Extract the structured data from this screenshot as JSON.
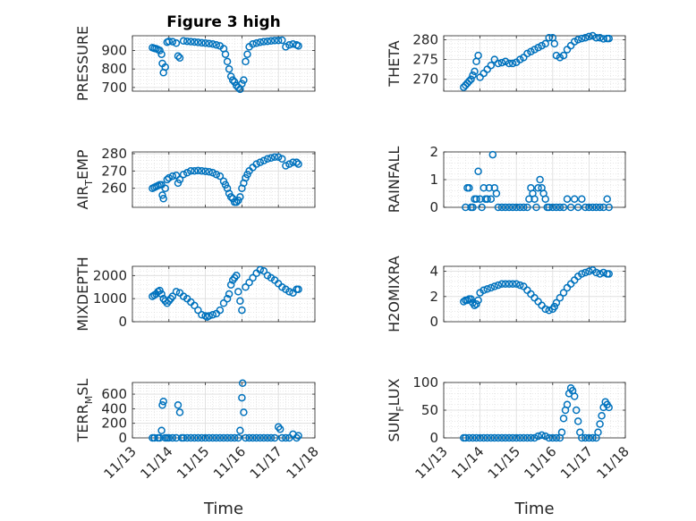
{
  "figure": {
    "title": "Figure 3 high",
    "marker_color": "#0072BD",
    "x_label": "Time",
    "x_ticks": [
      "11/13",
      "11/14",
      "11/15",
      "11/16",
      "11/17",
      "11/18"
    ]
  },
  "chart_data": [
    {
      "type": "scatter",
      "ylabel": "PRESSURE",
      "ylim": [
        680,
        980
      ],
      "yticks": [
        700,
        800,
        900
      ],
      "grid": true,
      "x": [
        13.55,
        13.6,
        13.65,
        13.7,
        13.75,
        13.8,
        13.82,
        13.85,
        13.9,
        13.95,
        14.0,
        14.1,
        14.2,
        14.25,
        14.3,
        14.4,
        14.5,
        14.6,
        14.7,
        14.8,
        14.9,
        15.0,
        15.1,
        15.2,
        15.3,
        15.4,
        15.5,
        15.55,
        15.6,
        15.65,
        15.7,
        15.75,
        15.8,
        15.85,
        15.9,
        15.95,
        16.0,
        16.05,
        16.1,
        16.15,
        16.2,
        16.3,
        16.4,
        16.5,
        16.6,
        16.7,
        16.8,
        16.9,
        17.0,
        17.1,
        17.2,
        17.3,
        17.4,
        17.5,
        17.55
      ],
      "y": [
        915,
        912,
        910,
        905,
        900,
        880,
        830,
        780,
        810,
        945,
        950,
        948,
        940,
        870,
        860,
        952,
        950,
        948,
        946,
        944,
        942,
        940,
        938,
        935,
        930,
        925,
        910,
        880,
        840,
        800,
        760,
        740,
        730,
        710,
        700,
        690,
        720,
        740,
        840,
        880,
        920,
        935,
        940,
        945,
        948,
        950,
        952,
        954,
        955,
        956,
        920,
        930,
        935,
        930,
        925
      ]
    },
    {
      "type": "scatter",
      "ylabel": "THETA",
      "ylim": [
        267,
        281
      ],
      "yticks": [
        270,
        275,
        280
      ],
      "grid": true,
      "x": [
        13.55,
        13.6,
        13.65,
        13.7,
        13.75,
        13.8,
        13.85,
        13.9,
        13.95,
        14.0,
        14.1,
        14.2,
        14.3,
        14.4,
        14.5,
        14.6,
        14.7,
        14.8,
        14.9,
        15.0,
        15.1,
        15.2,
        15.3,
        15.4,
        15.5,
        15.6,
        15.7,
        15.8,
        15.9,
        16.0,
        16.05,
        16.1,
        16.2,
        16.3,
        16.4,
        16.5,
        16.6,
        16.7,
        16.8,
        16.9,
        17.0,
        17.1,
        17.2,
        17.3,
        17.4,
        17.5,
        17.55
      ],
      "y": [
        268,
        268.5,
        269,
        269.5,
        270,
        271,
        272,
        274.5,
        276,
        270.5,
        271.5,
        272.5,
        273.5,
        275,
        274,
        274.2,
        274.5,
        274,
        274,
        274.3,
        275,
        275.5,
        276.5,
        277,
        277.5,
        278,
        278.5,
        279,
        280.5,
        280.5,
        279,
        276,
        275.5,
        276,
        277.5,
        278.5,
        279.5,
        280,
        280.3,
        280.5,
        280.8,
        281,
        280.5,
        280.5,
        280.2,
        280.3,
        280.3
      ]
    },
    {
      "type": "scatter",
      "ylabel": "AIR_TEMP",
      "ylabel_main": "AIR",
      "ylabel_sub": "T",
      "ylabel_rest": "EMP",
      "ylim": [
        249,
        281
      ],
      "yticks": [
        260,
        270,
        280
      ],
      "grid": true,
      "x": [
        13.55,
        13.6,
        13.65,
        13.7,
        13.75,
        13.8,
        13.82,
        13.85,
        13.9,
        13.95,
        14.0,
        14.1,
        14.2,
        14.25,
        14.3,
        14.4,
        14.5,
        14.6,
        14.7,
        14.8,
        14.9,
        15.0,
        15.1,
        15.2,
        15.3,
        15.4,
        15.5,
        15.55,
        15.6,
        15.65,
        15.7,
        15.75,
        15.8,
        15.85,
        15.9,
        15.95,
        16.0,
        16.05,
        16.1,
        16.15,
        16.2,
        16.3,
        16.4,
        16.5,
        16.6,
        16.7,
        16.8,
        16.9,
        17.0,
        17.1,
        17.2,
        17.3,
        17.4,
        17.5,
        17.55
      ],
      "y": [
        260,
        260.5,
        261,
        261.5,
        262,
        262,
        256,
        254,
        260,
        265,
        266,
        267,
        267.5,
        263,
        265,
        268,
        269,
        270,
        270,
        270.2,
        270,
        269.8,
        269.5,
        269,
        268,
        267,
        264,
        262,
        260,
        257,
        255,
        254,
        252,
        252,
        253,
        255,
        260,
        263,
        266,
        268,
        270,
        272,
        274,
        275,
        276,
        277,
        277.5,
        278,
        278,
        277,
        273,
        274,
        275,
        275,
        274
      ]
    },
    {
      "type": "scatter",
      "ylabel": "RAINFALL",
      "ylim": [
        0,
        2
      ],
      "yticks": [
        0,
        1,
        2
      ],
      "grid": true,
      "x": [
        13.6,
        13.65,
        13.7,
        13.75,
        13.8,
        13.85,
        13.9,
        13.95,
        14.0,
        14.05,
        14.1,
        14.15,
        14.2,
        14.25,
        14.3,
        14.35,
        14.4,
        14.45,
        14.5,
        14.6,
        14.7,
        14.8,
        14.9,
        15.0,
        15.1,
        15.2,
        15.3,
        15.35,
        15.4,
        15.45,
        15.5,
        15.55,
        15.6,
        15.65,
        15.7,
        15.75,
        15.8,
        15.85,
        15.9,
        16.0,
        16.1,
        16.2,
        16.3,
        16.4,
        16.5,
        16.6,
        16.7,
        16.8,
        16.9,
        17.0,
        17.1,
        17.2,
        17.3,
        17.4,
        17.5,
        17.55
      ],
      "y": [
        0,
        0.7,
        0.7,
        0,
        0,
        0.3,
        0.3,
        1.3,
        0.3,
        0,
        0.7,
        0.3,
        0.3,
        0.7,
        0.3,
        1.9,
        0.7,
        0.5,
        0,
        0,
        0,
        0,
        0,
        0,
        0,
        0,
        0,
        0.3,
        0.7,
        0.5,
        0.3,
        0,
        0.7,
        1.0,
        0.7,
        0.5,
        0.3,
        0,
        0,
        0,
        0,
        0,
        0,
        0.3,
        0,
        0.3,
        0,
        0.3,
        0,
        0,
        0,
        0,
        0,
        0,
        0.3,
        0
      ]
    },
    {
      "type": "scatter",
      "ylabel": "MIXDEPTH",
      "ylim": [
        0,
        2400
      ],
      "yticks": [
        0,
        1000,
        2000
      ],
      "grid": true,
      "x": [
        13.55,
        13.6,
        13.65,
        13.7,
        13.75,
        13.8,
        13.85,
        13.9,
        13.95,
        14.0,
        14.05,
        14.1,
        14.2,
        14.3,
        14.4,
        14.5,
        14.6,
        14.7,
        14.8,
        14.9,
        15.0,
        15.05,
        15.1,
        15.2,
        15.3,
        15.4,
        15.5,
        15.6,
        15.65,
        15.7,
        15.75,
        15.8,
        15.85,
        15.9,
        15.95,
        16.0,
        16.1,
        16.2,
        16.3,
        16.4,
        16.5,
        16.6,
        16.7,
        16.8,
        16.9,
        17.0,
        17.1,
        17.2,
        17.3,
        17.4,
        17.5,
        17.55
      ],
      "y": [
        1100,
        1150,
        1200,
        1300,
        1350,
        1200,
        1000,
        900,
        800,
        900,
        1000,
        1100,
        1300,
        1250,
        1100,
        1000,
        850,
        700,
        500,
        300,
        250,
        200,
        250,
        300,
        350,
        500,
        800,
        1000,
        1200,
        1600,
        1800,
        1900,
        2000,
        1300,
        900,
        500,
        1500,
        1700,
        1900,
        2100,
        2250,
        2200,
        2000,
        1900,
        1800,
        1650,
        1500,
        1400,
        1300,
        1250,
        1400,
        1400
      ]
    },
    {
      "type": "scatter",
      "ylabel": "H2OMIXRA",
      "ylim": [
        0,
        4.4
      ],
      "yticks": [
        0,
        2,
        4
      ],
      "grid": true,
      "x": [
        13.55,
        13.6,
        13.65,
        13.7,
        13.75,
        13.8,
        13.85,
        13.9,
        13.95,
        14.0,
        14.1,
        14.2,
        14.3,
        14.4,
        14.5,
        14.6,
        14.7,
        14.8,
        14.9,
        15.0,
        15.1,
        15.2,
        15.3,
        15.4,
        15.5,
        15.6,
        15.7,
        15.8,
        15.9,
        16.0,
        16.05,
        16.1,
        16.2,
        16.3,
        16.4,
        16.5,
        16.6,
        16.7,
        16.8,
        16.9,
        17.0,
        17.1,
        17.2,
        17.3,
        17.4,
        17.5,
        17.55
      ],
      "y": [
        1.6,
        1.7,
        1.7,
        1.8,
        1.8,
        1.5,
        1.3,
        1.4,
        1.7,
        2.3,
        2.5,
        2.6,
        2.7,
        2.8,
        2.9,
        3.0,
        3.0,
        3.0,
        3.0,
        3.0,
        2.9,
        2.8,
        2.5,
        2.2,
        1.9,
        1.6,
        1.3,
        1.0,
        0.9,
        1.0,
        1.2,
        1.5,
        1.9,
        2.3,
        2.7,
        3.0,
        3.3,
        3.6,
        3.8,
        3.9,
        4.0,
        4.1,
        3.9,
        3.8,
        3.9,
        3.8,
        3.8
      ]
    },
    {
      "type": "scatter",
      "ylabel": "TERR_MSL",
      "ylabel_main": "TERR",
      "ylabel_sub": "M",
      "ylabel_rest": "SL",
      "ylim": [
        0,
        760
      ],
      "yticks": [
        0,
        200,
        400,
        600
      ],
      "grid": true,
      "x": [
        13.55,
        13.6,
        13.7,
        13.75,
        13.8,
        13.82,
        13.85,
        13.9,
        13.95,
        14.0,
        14.1,
        14.2,
        14.25,
        14.3,
        14.35,
        14.4,
        14.5,
        14.6,
        14.7,
        14.8,
        14.9,
        15.0,
        15.1,
        15.2,
        15.3,
        15.4,
        15.5,
        15.6,
        15.7,
        15.8,
        15.9,
        15.95,
        16.0,
        16.02,
        16.05,
        16.1,
        16.2,
        16.3,
        16.4,
        16.5,
        16.6,
        16.7,
        16.8,
        16.9,
        17.0,
        17.05,
        17.1,
        17.2,
        17.3,
        17.4,
        17.5,
        17.55
      ],
      "y": [
        0,
        0,
        0,
        0,
        100,
        450,
        500,
        0,
        0,
        0,
        0,
        0,
        450,
        350,
        0,
        0,
        0,
        0,
        0,
        0,
        0,
        0,
        0,
        0,
        0,
        0,
        0,
        0,
        0,
        0,
        0,
        100,
        550,
        750,
        350,
        0,
        0,
        0,
        0,
        0,
        0,
        0,
        0,
        0,
        150,
        120,
        0,
        0,
        0,
        50,
        0,
        30
      ]
    },
    {
      "type": "scatter",
      "ylabel": "SUN_FLUX",
      "ylabel_main": "SUN",
      "ylabel_sub": "F",
      "ylabel_rest": "LUX",
      "ylim": [
        0,
        100
      ],
      "yticks": [
        0,
        50,
        100
      ],
      "grid": true,
      "x": [
        13.55,
        13.6,
        13.7,
        13.8,
        13.9,
        14.0,
        14.1,
        14.2,
        14.3,
        14.4,
        14.5,
        14.6,
        14.7,
        14.8,
        14.9,
        15.0,
        15.1,
        15.2,
        15.3,
        15.4,
        15.5,
        15.6,
        15.7,
        15.8,
        15.9,
        16.0,
        16.1,
        16.2,
        16.25,
        16.3,
        16.35,
        16.4,
        16.45,
        16.5,
        16.55,
        16.6,
        16.65,
        16.7,
        16.75,
        16.8,
        16.9,
        17.0,
        17.1,
        17.2,
        17.25,
        17.3,
        17.35,
        17.4,
        17.45,
        17.5,
        17.55
      ],
      "y": [
        0,
        0,
        0,
        0,
        0,
        0,
        0,
        0,
        0,
        0,
        0,
        0,
        0,
        0,
        0,
        0,
        0,
        0,
        0,
        0,
        0,
        3,
        5,
        3,
        0,
        0,
        0,
        0,
        10,
        35,
        50,
        60,
        80,
        90,
        85,
        75,
        50,
        30,
        10,
        0,
        0,
        0,
        0,
        0,
        10,
        25,
        40,
        55,
        65,
        60,
        55
      ]
    }
  ]
}
